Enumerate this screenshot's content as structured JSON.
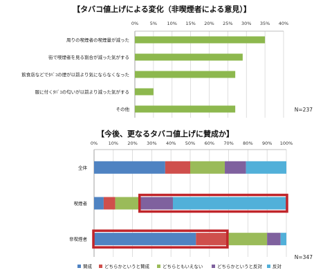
{
  "colors": {
    "green": "#8DB84E",
    "blue": "#4F83C2",
    "red": "#CF4F4C",
    "lightgreen": "#9ABB59",
    "purple": "#7F619E",
    "lightblue": "#51B0D9",
    "highlight": "#C0252A"
  },
  "chart_data": [
    {
      "type": "bar",
      "orientation": "horizontal",
      "title": "【タバコ値上げによる変化（非喫煙者による意見）】",
      "categories": [
        "周りの喫煙者の喫煙量が減った",
        "街で喫煙者を見る割合が減った気がする",
        "飲食店などでﾀﾊﾞｺの煙が以前より気にならなくなった",
        "服に付くﾀﾊﾞｺの匂いが以前より減った気がする",
        "その他"
      ],
      "values": [
        35,
        29,
        27,
        5,
        27
      ],
      "xlim": [
        0,
        40
      ],
      "tick_labels": [
        "0%",
        "5%",
        "10%",
        "15%",
        "20%",
        "25%",
        "30%",
        "35%",
        "40%"
      ],
      "grid": true,
      "note": "N=237"
    },
    {
      "type": "bar",
      "orientation": "horizontal",
      "stacked": true,
      "title": "【今後、更なるタバコ値上げに賛成か】",
      "categories": [
        "全体",
        "喫煙者",
        "非喫煙者"
      ],
      "series": [
        {
          "name": "賛成",
          "color": "#4F83C2",
          "values": [
            37,
            5,
            53
          ]
        },
        {
          "name": "どちらかというと賛成",
          "color": "#CF4F4C",
          "values": [
            13,
            6,
            16
          ]
        },
        {
          "name": "どちらともいえない",
          "color": "#9ABB59",
          "values": [
            18,
            13,
            21
          ]
        },
        {
          "name": "どちらかというと反対",
          "color": "#7F619E",
          "values": [
            11,
            17,
            7
          ]
        },
        {
          "name": "反対",
          "color": "#51B0D9",
          "values": [
            21,
            59,
            3
          ]
        }
      ],
      "xlim": [
        0,
        100
      ],
      "tick_labels": [
        "0%",
        "10%",
        "20%",
        "30%",
        "40%",
        "50%",
        "60%",
        "70%",
        "80%",
        "90%",
        "100%"
      ],
      "grid": true,
      "legend_position": "bottom",
      "highlights": [
        {
          "category": "喫煙者",
          "series": [
            "どちらかというと反対",
            "反対"
          ]
        },
        {
          "category": "非喫煙者",
          "series": [
            "賛成",
            "どちらかというと賛成"
          ]
        }
      ],
      "note": "N=347"
    }
  ]
}
